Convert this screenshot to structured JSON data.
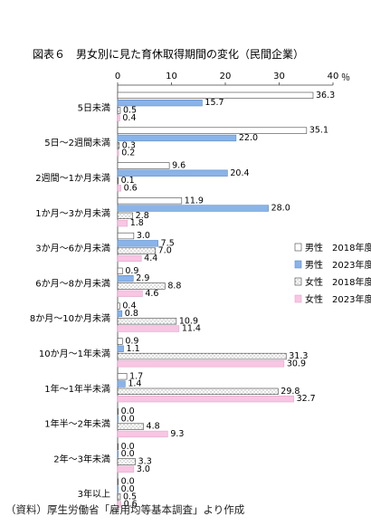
{
  "chart_data": {
    "type": "bar",
    "orientation": "horizontal",
    "title": "図表６　男女別に見た育休取得期間の変化（民間企業）",
    "unit": "％",
    "xlim": [
      0,
      40
    ],
    "ticks": [
      "0",
      "10",
      "20",
      "30",
      "40"
    ],
    "grid": false,
    "legend_position": "right",
    "categories": [
      "5日未満",
      "5日～2週間未満",
      "2週間～1か月未満",
      "1か月～3か月未満",
      "3か月～6か月未満",
      "6か月～8か月未満",
      "8か月～10か月未満",
      "10か月～1年未満",
      "1年～1年半未満",
      "1年半～2年未満",
      "2年～3年未満",
      "3年以上"
    ],
    "series": [
      {
        "name": "男性　2018年度",
        "color": "#ffffff",
        "stroke": "#444444",
        "hatch": false,
        "values": [
          "36.3",
          "35.1",
          "9.6",
          "11.9",
          "3.0",
          "0.9",
          "0.4",
          "0.9",
          "1.7",
          "0.0",
          "0.0",
          "0.0"
        ]
      },
      {
        "name": "男性　2023年度",
        "color": "#8ab4e8",
        "stroke": "#5a8ac8",
        "hatch": false,
        "values": [
          "15.7",
          "22.0",
          "20.4",
          "28.0",
          "7.5",
          "2.9",
          "0.8",
          "1.1",
          "1.4",
          "0.0",
          "0.0",
          "0.0"
        ]
      },
      {
        "name": "女性　2018年度",
        "color": "#ffffff",
        "stroke": "#444444",
        "hatch": true,
        "values": [
          "0.5",
          "0.3",
          "0.1",
          "2.8",
          "7.0",
          "8.8",
          "10.9",
          "31.3",
          "29.8",
          "4.8",
          "3.3",
          "0.5"
        ]
      },
      {
        "name": "女性　2023年度",
        "color": "#f7c6e3",
        "stroke": "#e4a6cc",
        "hatch": false,
        "values": [
          "0.4",
          "0.2",
          "0.6",
          "1.8",
          "4.4",
          "4.6",
          "11.4",
          "30.9",
          "32.7",
          "9.3",
          "3.0",
          "0.6"
        ]
      }
    ]
  },
  "source_note": "（資料）厚生労働省「雇用均等基本調査」より作成"
}
